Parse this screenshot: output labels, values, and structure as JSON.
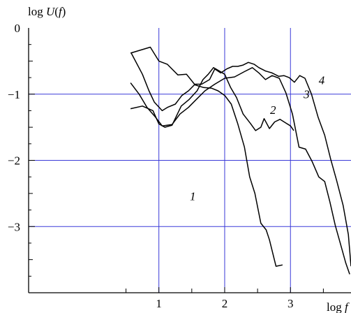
{
  "chart_data": {
    "type": "line",
    "ylabel": "log U(f)",
    "ylabel_parts": {
      "prefix": "log ",
      "italic1": "U",
      "open": "(",
      "italic2": "f",
      "close": ")"
    },
    "xlabel_parts": {
      "prefix": "log ",
      "italic": "f"
    },
    "xlim": [
      -0.98,
      3.92
    ],
    "ylim": [
      -4.0,
      0
    ],
    "grid": true,
    "grid_color": "#3a3ad8",
    "line_color": "#000000",
    "x_ticks": [
      {
        "value": 1,
        "label": "1"
      },
      {
        "value": 2,
        "label": "2"
      },
      {
        "value": 3,
        "label": "3"
      }
    ],
    "y_ticks": [
      {
        "value": 0,
        "label": "0"
      },
      {
        "value": -1,
        "label": "−1"
      },
      {
        "value": -2,
        "label": "−2"
      },
      {
        "value": -3,
        "label": "−3"
      }
    ],
    "series": [
      {
        "name": "1",
        "label_at": [
          1.47,
          -2.6
        ],
        "x": [
          0.57,
          0.87,
          1.0,
          1.13,
          1.29,
          1.42,
          1.55,
          1.68,
          1.8,
          1.9,
          2.0,
          2.1,
          2.2,
          2.3,
          2.38,
          2.46,
          2.55,
          2.63,
          2.68,
          2.78,
          2.88
        ],
        "y": [
          -0.38,
          -0.29,
          -0.5,
          -0.55,
          -0.71,
          -0.7,
          -0.86,
          -0.9,
          -0.91,
          -0.95,
          -1.02,
          -1.15,
          -1.45,
          -1.8,
          -2.25,
          -2.5,
          -2.95,
          -3.05,
          -3.2,
          -3.6,
          -3.58
        ]
      },
      {
        "name": "2",
        "label_at": [
          2.69,
          -1.3
        ],
        "x": [
          0.57,
          0.75,
          0.91,
          1.0,
          1.09,
          1.2,
          1.34,
          1.46,
          1.58,
          1.67,
          1.75,
          1.83,
          1.92,
          2.0,
          2.09,
          2.18,
          2.28,
          2.39,
          2.47,
          2.55,
          2.6,
          2.68,
          2.76,
          2.84,
          2.92,
          3.0,
          3.05
        ],
        "y": [
          -1.22,
          -1.18,
          -1.25,
          -1.45,
          -1.5,
          -1.47,
          -1.18,
          -1.08,
          -0.95,
          -0.78,
          -0.7,
          -0.6,
          -0.65,
          -0.7,
          -0.9,
          -1.05,
          -1.3,
          -1.44,
          -1.55,
          -1.5,
          -1.37,
          -1.52,
          -1.42,
          -1.38,
          -1.43,
          -1.48,
          -1.55
        ]
      },
      {
        "name": "3",
        "label_at": [
          3.2,
          -1.06
        ],
        "x": [
          0.57,
          0.7,
          0.82,
          0.95,
          1.05,
          1.2,
          1.32,
          1.45,
          1.55,
          1.7,
          1.85,
          2.0,
          2.15,
          2.3,
          2.42,
          2.52,
          2.62,
          2.72,
          2.83,
          2.93,
          3.03,
          3.13,
          3.23,
          3.33,
          3.43,
          3.52,
          3.6,
          3.68,
          3.77,
          3.84,
          3.9
        ],
        "y": [
          -0.83,
          -1.0,
          -1.2,
          -1.35,
          -1.48,
          -1.46,
          -1.3,
          -1.2,
          -1.1,
          -0.95,
          -0.85,
          -0.76,
          -0.74,
          -0.66,
          -0.6,
          -0.68,
          -0.78,
          -0.72,
          -0.76,
          -0.98,
          -1.3,
          -1.8,
          -1.83,
          -2.02,
          -2.25,
          -2.32,
          -2.63,
          -2.98,
          -3.3,
          -3.55,
          -3.72
        ]
      },
      {
        "name": "4",
        "label_at": [
          3.43,
          -0.85
        ],
        "x": [
          0.58,
          0.75,
          0.85,
          0.93,
          1.05,
          1.13,
          1.25,
          1.35,
          1.45,
          1.55,
          1.65,
          1.77,
          1.85,
          1.94,
          2.03,
          2.12,
          2.2,
          2.28,
          2.36,
          2.45,
          2.52,
          2.62,
          2.72,
          2.82,
          2.9,
          2.98,
          3.06,
          3.14,
          3.22,
          3.32,
          3.42,
          3.52,
          3.61,
          3.7,
          3.8,
          3.88,
          3.92
        ],
        "y": [
          -0.38,
          -0.7,
          -0.95,
          -1.12,
          -1.25,
          -1.2,
          -1.15,
          -1.02,
          -0.95,
          -0.85,
          -0.85,
          -0.78,
          -0.62,
          -0.68,
          -0.62,
          -0.58,
          -0.58,
          -0.56,
          -0.52,
          -0.55,
          -0.6,
          -0.65,
          -0.68,
          -0.73,
          -0.72,
          -0.75,
          -0.82,
          -0.72,
          -0.76,
          -1.0,
          -1.35,
          -1.62,
          -1.98,
          -2.3,
          -2.68,
          -3.12,
          -3.6
        ]
      }
    ]
  }
}
